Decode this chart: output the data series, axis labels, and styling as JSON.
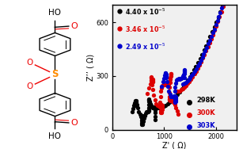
{
  "xlabel": "Z' ( Ω)",
  "ylabel": "Z’’ ( Ω)",
  "xlim": [
    0,
    2400
  ],
  "ylim": [
    0,
    700
  ],
  "xticks": [
    0,
    1000,
    2000
  ],
  "yticks": [
    0,
    300,
    600
  ],
  "legend_conductivity": [
    {
      "label": "4.40 x 10⁻⁵",
      "color": "#000000"
    },
    {
      "label": "3.46 x 10⁻⁵",
      "color": "#dd0000"
    },
    {
      "label": "2.49 x 10⁻⁵",
      "color": "#0000cc"
    }
  ],
  "legend_temp": [
    {
      "label": "298K",
      "color": "#000000"
    },
    {
      "label": "300K",
      "color": "#dd0000"
    },
    {
      "label": "303K",
      "color": "#0000cc"
    }
  ],
  "plot_bg": "#f0f0f0",
  "marker_size": 3.8
}
